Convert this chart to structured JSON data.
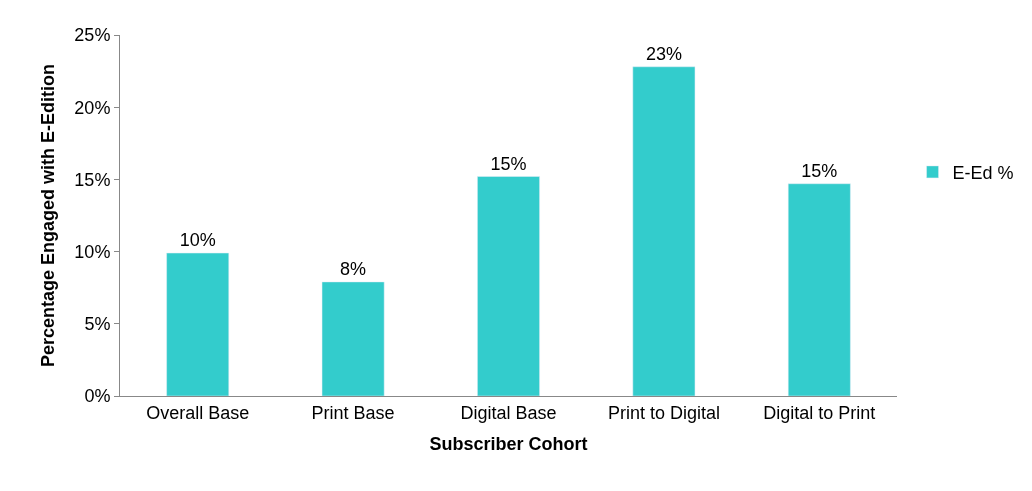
{
  "chart_data": {
    "type": "bar",
    "xlabel": "Subscriber Cohort",
    "ylabel": "Percentage Engaged with E-Edition",
    "categories": [
      "Overall Base",
      "Print Base",
      "Digital Base",
      "Print to Digital",
      "Digital to Print"
    ],
    "series": [
      {
        "name": "E-Ed %",
        "color": "#33cccc",
        "values": [
          9.9,
          7.9,
          15.2,
          22.8,
          14.7
        ],
        "value_labels": [
          "10%",
          "8%",
          "15%",
          "23%",
          "15%"
        ]
      }
    ],
    "ylim": [
      0,
      25
    ],
    "yticks": [
      {
        "value": 0,
        "label": "0%"
      },
      {
        "value": 5,
        "label": "5%"
      },
      {
        "value": 10,
        "label": "10%"
      },
      {
        "value": 15,
        "label": "15%"
      },
      {
        "value": 20,
        "label": "20%"
      },
      {
        "value": 25,
        "label": "25%"
      }
    ],
    "legend": "right"
  }
}
